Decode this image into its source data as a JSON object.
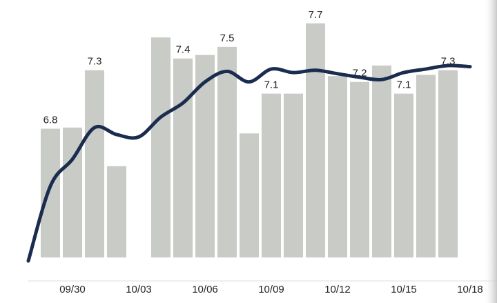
{
  "chart_data": {
    "type": "bar-line",
    "categories": [
      null,
      null,
      "09/30",
      null,
      null,
      "10/03",
      null,
      null,
      "10/06",
      null,
      null,
      "10/09",
      null,
      null,
      "10/12",
      null,
      null,
      "10/15",
      null,
      null,
      "10/18"
    ],
    "ylim": [
      5.7,
      7.9
    ],
    "series": [
      {
        "type": "bar",
        "color": "#c9cbc6",
        "values": [
          null,
          6.8,
          6.81,
          7.3,
          6.48,
          null,
          7.58,
          7.4,
          7.43,
          7.5,
          6.76,
          7.1,
          7.1,
          7.7,
          7.25,
          7.2,
          7.34,
          7.1,
          7.26,
          7.3,
          null
        ],
        "value_labels": [
          null,
          "6.8",
          null,
          "7.3",
          null,
          null,
          null,
          "7.4",
          null,
          "7.5",
          null,
          "7.1",
          null,
          "7.7",
          null,
          "7.2",
          null,
          "7.1",
          null,
          "7.3",
          null
        ]
      },
      {
        "type": "line",
        "color": "#1b2d4f",
        "values": [
          5.67,
          6.31,
          6.54,
          6.81,
          6.75,
          6.73,
          6.9,
          7.02,
          7.2,
          7.29,
          7.2,
          7.31,
          7.28,
          7.3,
          7.27,
          7.24,
          7.22,
          7.28,
          7.31,
          7.34,
          7.33
        ]
      }
    ]
  }
}
